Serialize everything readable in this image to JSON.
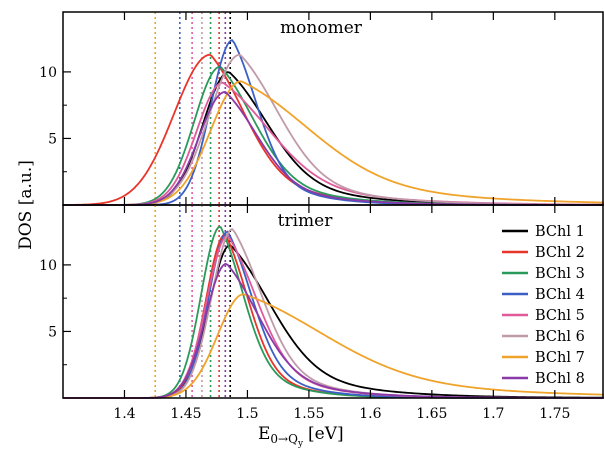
{
  "chart_data": {
    "type": "line",
    "xlabel_main": "E",
    "xlabel_sub": "0→Q",
    "xlabel_subsub": "y",
    "xlabel_unit": "[eV]",
    "ylabel": "DOS [a.u.]",
    "xlim": [
      1.35,
      1.79
    ],
    "ylim": [
      0,
      14.5
    ],
    "x_ticks": [
      "1.4",
      "1.45",
      "1.5",
      "1.55",
      "1.6",
      "1.65",
      "1.7",
      "1.75"
    ],
    "y_ticks": [
      "5",
      "10"
    ],
    "legend_position": "right of bottom panel",
    "series": [
      {
        "name": "BChl 1",
        "color": "#000000",
        "dashed": "#000000",
        "peak_monomer": [
          1.485,
          10.0
        ],
        "wl_m": 0.03,
        "wr_m": 0.048,
        "peak_trimer": [
          1.486,
          11.5
        ],
        "wl_t": 0.024,
        "wr_t": 0.05
      },
      {
        "name": "BChl 2",
        "color": "#e8352a",
        "dashed": "#e8352a",
        "peak_monomer": [
          1.47,
          11.3
        ],
        "wl_m": 0.042,
        "wr_m": 0.042,
        "peak_trimer": [
          1.482,
          12.3
        ],
        "wl_t": 0.022,
        "wr_t": 0.028
      },
      {
        "name": "BChl 3",
        "color": "#2a9a5a",
        "dashed": "#2a9a5a",
        "peak_monomer": [
          1.478,
          10.4
        ],
        "wl_m": 0.03,
        "wr_m": 0.042,
        "peak_trimer": [
          1.478,
          12.9
        ],
        "wl_t": 0.022,
        "wr_t": 0.028
      },
      {
        "name": "BChl 4",
        "color": "#3b5fc4",
        "dashed": "#3b5fc4",
        "peak_monomer": [
          1.488,
          12.4
        ],
        "wl_m": 0.025,
        "wr_m": 0.03,
        "peak_trimer": [
          1.484,
          12.5
        ],
        "wl_t": 0.022,
        "wr_t": 0.03
      },
      {
        "name": "BChl 5",
        "color": "#e05a9a",
        "dashed": "#e05a9a",
        "peak_monomer": [
          1.48,
          9.2
        ],
        "wl_m": 0.03,
        "wr_m": 0.058,
        "peak_trimer": [
          1.484,
          12.2
        ],
        "wl_t": 0.024,
        "wr_t": 0.036
      },
      {
        "name": "BChl 6",
        "color": "#c09aa8",
        "dashed": "#c09aa8",
        "peak_monomer": [
          1.494,
          11.3
        ],
        "wl_m": 0.035,
        "wr_m": 0.048,
        "peak_trimer": [
          1.488,
          12.7
        ],
        "wl_t": 0.024,
        "wr_t": 0.036
      },
      {
        "name": "BChl 7",
        "color": "#f0a32a",
        "dashed": "#f0a32a",
        "peak_monomer": [
          1.495,
          9.3
        ],
        "wl_m": 0.035,
        "wr_m": 0.085,
        "peak_trimer": [
          1.497,
          7.8
        ],
        "wl_t": 0.03,
        "wr_t": 0.1
      },
      {
        "name": "BChl 8",
        "color": "#8a3aa8",
        "dashed": "#8a3aa8",
        "peak_monomer": [
          1.482,
          8.5
        ],
        "wl_m": 0.03,
        "wr_m": 0.04,
        "peak_trimer": [
          1.483,
          10.1
        ],
        "wl_t": 0.024,
        "wr_t": 0.04
      }
    ],
    "dotted_lines": [
      {
        "x": 1.425,
        "color": "#f0a32a"
      },
      {
        "x": 1.445,
        "color": "#3b5fc4"
      },
      {
        "x": 1.455,
        "color": "#e05a9a"
      },
      {
        "x": 1.463,
        "color": "#c09aa8"
      },
      {
        "x": 1.47,
        "color": "#2a9a5a"
      },
      {
        "x": 1.477,
        "color": "#e8352a"
      },
      {
        "x": 1.482,
        "color": "#8a3aa8"
      },
      {
        "x": 1.486,
        "color": "#000000"
      }
    ],
    "panels": [
      {
        "title": "monomer",
        "key": "monomer"
      },
      {
        "title": "trimer",
        "key": "trimer"
      }
    ]
  }
}
